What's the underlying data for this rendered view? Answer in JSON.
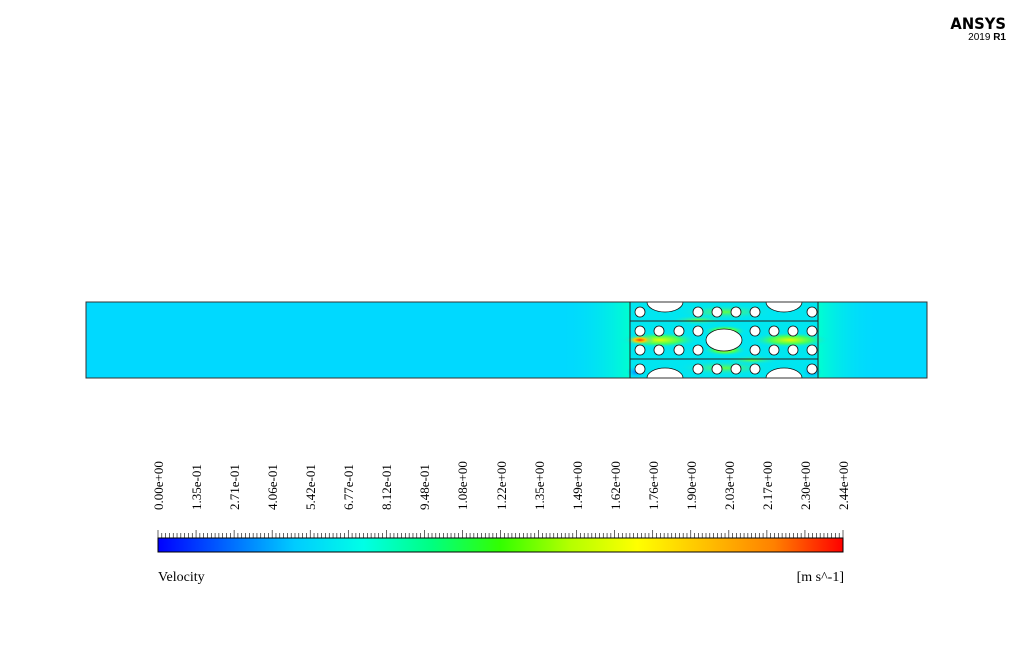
{
  "logo": {
    "brand": "ANSYS",
    "version_year": "2019",
    "version_release": "R1"
  },
  "legend": {
    "title": "Velocity",
    "unit": "[m s^-1]",
    "min": 0.0,
    "max": 2.44,
    "tick_labels": [
      "0.00e+00",
      "1.35e-01",
      "2.71e-01",
      "4.06e-01",
      "5.42e-01",
      "6.77e-01",
      "8.12e-01",
      "9.48e-01",
      "1.08e+00",
      "1.22e+00",
      "1.35e+00",
      "1.49e+00",
      "1.62e+00",
      "1.76e+00",
      "1.90e+00",
      "2.03e+00",
      "2.17e+00",
      "2.30e+00",
      "2.44e+00"
    ],
    "colormap": [
      "#0000ff",
      "#0066ff",
      "#00ccff",
      "#00ffe6",
      "#00ff80",
      "#33ff00",
      "#b3ff00",
      "#ffff00",
      "#ffc000",
      "#ff8000",
      "#ff0000"
    ]
  },
  "contour": {
    "field": "Velocity",
    "colors": {
      "freestream": "#00d9ff",
      "wake": "#00f0d0",
      "high": "#d8ff00",
      "peak": "#ff4400",
      "obstacle": "#ffffff",
      "outline": "#000000"
    }
  }
}
